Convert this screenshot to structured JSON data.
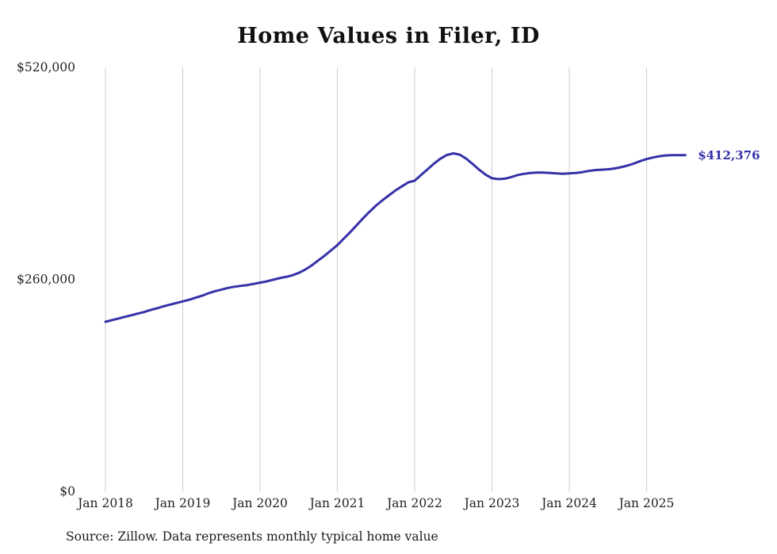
{
  "chart_data": {
    "type": "line",
    "title": "Home Values in Filer, ID",
    "series_name": "Monthly typical home value",
    "x_start": "2018-01",
    "x_interval": "month",
    "values": [
      208000,
      210000,
      212000,
      214000,
      216000,
      218000,
      220000,
      222500,
      224500,
      227000,
      229000,
      231000,
      233000,
      235000,
      237500,
      240000,
      243000,
      245500,
      247500,
      249500,
      251000,
      252000,
      253000,
      254500,
      256000,
      257500,
      259500,
      261500,
      263000,
      265000,
      268000,
      272000,
      277000,
      283000,
      289000,
      295500,
      302000,
      310000,
      318000,
      326500,
      335000,
      343000,
      350500,
      357000,
      363000,
      369000,
      374000,
      379000,
      381000,
      388000,
      395000,
      402000,
      408000,
      412500,
      414500,
      413000,
      408000,
      401500,
      394500,
      388500,
      384000,
      383000,
      383500,
      385500,
      388000,
      389500,
      390500,
      391000,
      391000,
      390500,
      390000,
      389500,
      390000,
      390500,
      391500,
      393000,
      394000,
      394500,
      395000,
      396000,
      397500,
      399500,
      402000,
      405000,
      407500,
      409500,
      411000,
      412000,
      412300,
      412350,
      412376
    ],
    "x_tick_labels": [
      "Jan 2018",
      "Jan 2019",
      "Jan 2020",
      "Jan 2021",
      "Jan 2022",
      "Jan 2023",
      "Jan 2024",
      "Jan 2025"
    ],
    "y_ticks": [
      {
        "value": 0,
        "label": "$0"
      },
      {
        "value": 260000,
        "label": "$260,000"
      },
      {
        "value": 520000,
        "label": "$520,000"
      }
    ],
    "ylim": [
      0,
      520000
    ],
    "end_value": 412376,
    "end_label": "$412,376",
    "line_color": "#3531a8",
    "grid_color": "#cccccc",
    "grid": "vertical-only",
    "legend": "none",
    "source_note": "Source: Zillow. Data represents monthly typical home value"
  }
}
